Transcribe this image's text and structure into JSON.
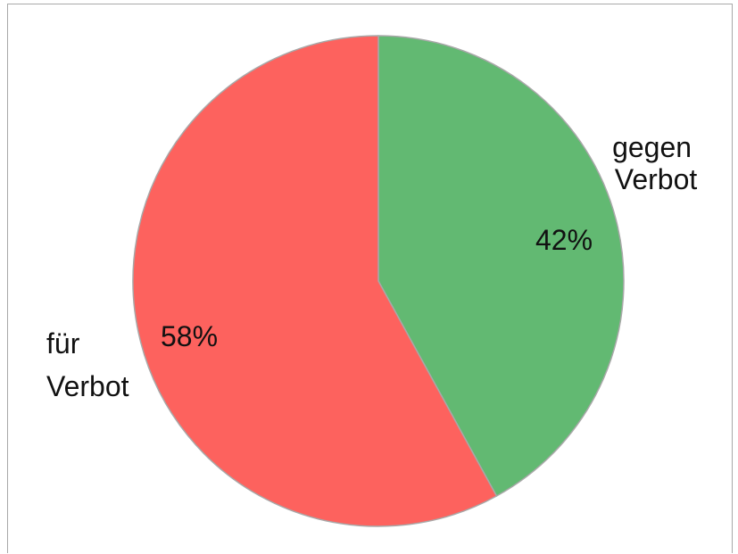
{
  "chart_data": {
    "type": "pie",
    "title": "",
    "slices": [
      {
        "label_lines": [
          "gegen",
          "Verbot"
        ],
        "value": 42,
        "value_label": "42%",
        "color": "#62b972"
      },
      {
        "label_lines": [
          "für",
          "Verbot"
        ],
        "value": 58,
        "value_label": "58%",
        "color": "#fd625e"
      }
    ],
    "start": "12 o'clock",
    "direction": "clockwise",
    "slice_border_color": "#a8a8a8",
    "legend": "none (labels beside slices)"
  }
}
